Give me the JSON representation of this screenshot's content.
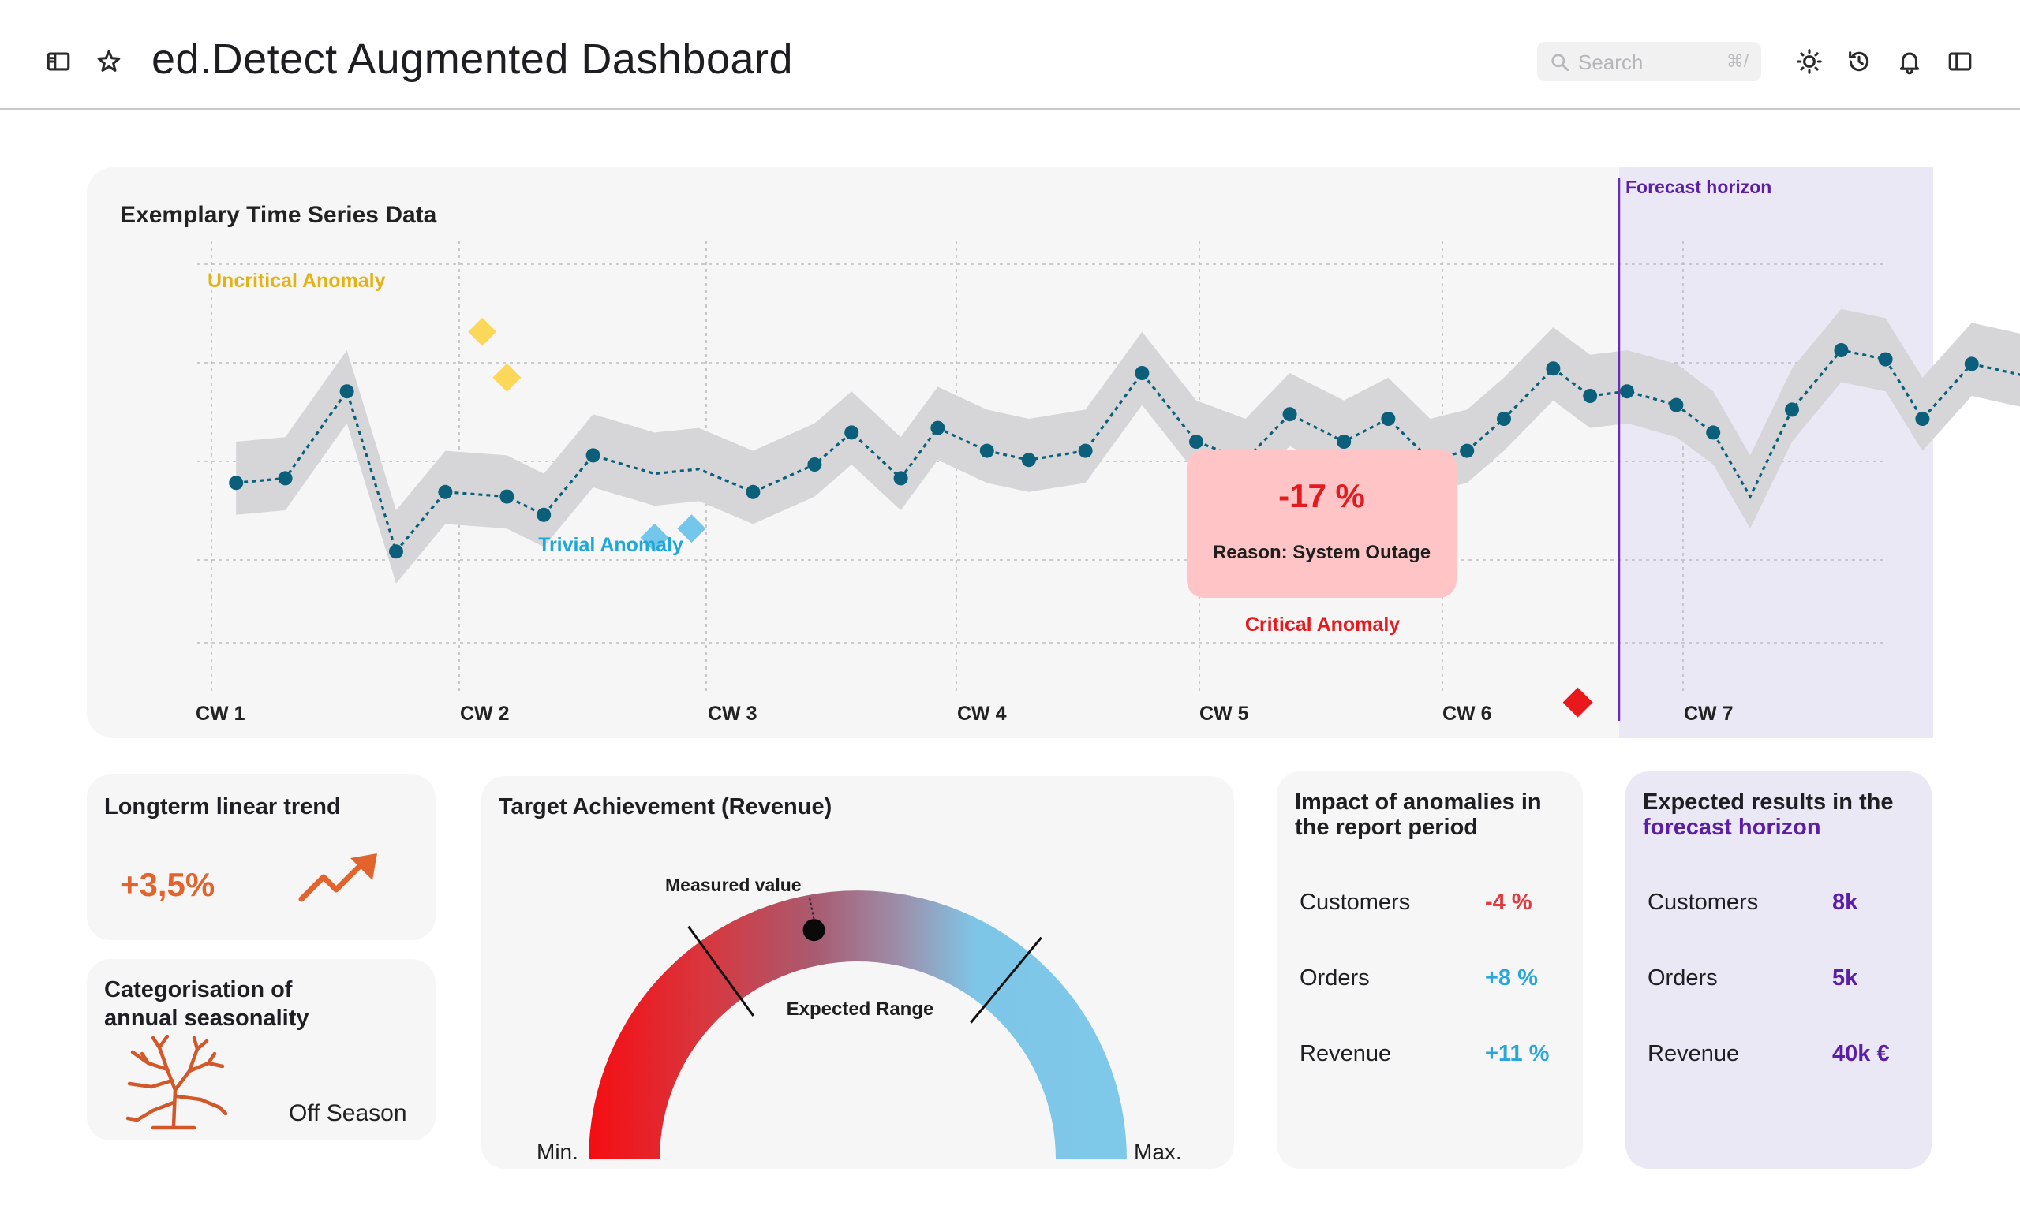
{
  "header": {
    "title": "ed.Detect Augmented Dashboard",
    "search_placeholder": "Search",
    "search_shortcut": "⌘/",
    "icons": [
      "sidebar-toggle-icon",
      "star-icon",
      "sun-icon",
      "history-icon",
      "bell-icon",
      "panel-icon"
    ]
  },
  "chart_data": {
    "type": "line",
    "title": "Exemplary Time Series Data",
    "x_ticks": [
      "CW 1",
      "CW 2",
      "CW 3",
      "CW 4",
      "CW 5",
      "CW 6",
      "CW 7"
    ],
    "ylim": [
      0,
      100
    ],
    "grid": true,
    "series": [
      {
        "values": [
          [
            0.1,
            41
          ],
          [
            0.3,
            42
          ],
          [
            0.55,
            61
          ],
          [
            0.75,
            26
          ],
          [
            0.95,
            39
          ],
          [
            1.2,
            38
          ],
          [
            1.35,
            34
          ],
          [
            1.55,
            47
          ],
          [
            1.8,
            43
          ],
          [
            1.98,
            44
          ],
          [
            2.2,
            39
          ],
          [
            2.45,
            45
          ],
          [
            2.6,
            52
          ],
          [
            2.8,
            42
          ],
          [
            2.95,
            53
          ],
          [
            3.15,
            48
          ],
          [
            3.32,
            46
          ],
          [
            3.55,
            48
          ],
          [
            3.78,
            65
          ],
          [
            4.0,
            50
          ],
          [
            4.2,
            46
          ],
          [
            4.38,
            56
          ],
          [
            4.6,
            50
          ],
          [
            4.78,
            55
          ],
          [
            4.95,
            46
          ],
          [
            5.1,
            48
          ],
          [
            5.25,
            55
          ],
          [
            5.45,
            66
          ],
          [
            5.6,
            60
          ],
          [
            5.75,
            61
          ],
          [
            5.95,
            58
          ],
          [
            6.1,
            52
          ],
          [
            6.25,
            38
          ],
          [
            6.42,
            57
          ],
          [
            6.62,
            70
          ],
          [
            6.8,
            68
          ],
          [
            6.95,
            55
          ],
          [
            7.15,
            67
          ]
        ],
        "points": [
          [
            0.1,
            41
          ],
          [
            0.3,
            42
          ],
          [
            0.55,
            61
          ],
          [
            0.75,
            26
          ],
          [
            0.95,
            39
          ],
          [
            1.2,
            38
          ],
          [
            1.35,
            34
          ],
          [
            1.55,
            47
          ],
          [
            2.2,
            39
          ],
          [
            2.45,
            45
          ],
          [
            2.6,
            52
          ],
          [
            2.8,
            42
          ],
          [
            2.95,
            53
          ],
          [
            3.15,
            48
          ],
          [
            3.32,
            46
          ],
          [
            3.55,
            48
          ],
          [
            3.78,
            65
          ],
          [
            4.0,
            50
          ],
          [
            4.2,
            46
          ],
          [
            4.38,
            56
          ],
          [
            4.6,
            50
          ],
          [
            4.78,
            55
          ],
          [
            4.95,
            46
          ],
          [
            5.1,
            48
          ],
          [
            5.25,
            55
          ],
          [
            5.45,
            66
          ],
          [
            5.6,
            60
          ],
          [
            5.75,
            61
          ],
          [
            5.95,
            58
          ],
          [
            6.1,
            52
          ],
          [
            6.42,
            57
          ],
          [
            6.62,
            70
          ],
          [
            6.8,
            68
          ],
          [
            6.95,
            55
          ],
          [
            7.15,
            67
          ]
        ]
      },
      {
        "values": [
          [
            7.15,
            67
          ],
          [
            7.4,
            64
          ],
          [
            7.6,
            66
          ],
          [
            7.8,
            70
          ],
          [
            8.0,
            70
          ],
          [
            8.2,
            61
          ],
          [
            8.45,
            66
          ],
          [
            8.75,
            73
          ]
        ]
      }
    ],
    "anomalies": [
      {
        "label": "Uncritical Anomaly",
        "color": "#f5c731",
        "points": [
          [
            1.1,
            74
          ],
          [
            1.2,
            64
          ]
        ]
      },
      {
        "label": "Trivial Anomaly",
        "color": "#1ea7d9",
        "points": [
          [
            1.8,
            29
          ],
          [
            1.95,
            31
          ]
        ]
      },
      {
        "label": "Critical Anomaly",
        "color": "#e8181d",
        "points": [
          [
            5.55,
            -7
          ]
        ]
      }
    ],
    "callout": {
      "value": "-17 %",
      "reason": "Reason: System Outage"
    },
    "forecast_label": "Forecast horizon",
    "colors": {
      "line": "#0b5f7a",
      "band": "#d6d6d8",
      "forecast_bg": "#ebe8f6",
      "forecast_line": "#6a2cb5"
    }
  },
  "trend": {
    "title": "Longterm linear trend",
    "value": "+3,5%",
    "icon": "trend-up-arrow-icon"
  },
  "season": {
    "title_line1": "Categorisation of",
    "title_line2": "annual seasonality",
    "value": "Off Season",
    "icon": "bare-tree-icon"
  },
  "gauge": {
    "title": "Target Achievement (Revenue)",
    "measured_label": "Measured value",
    "expected_label": "Expected Range",
    "min_label": "Min.",
    "max_label": "Max.",
    "measured_fraction": 0.44,
    "expected_range": [
      0.3,
      0.72
    ]
  },
  "impact": {
    "title_line1": "Impact of anomalies in",
    "title_line2": "the report period",
    "rows": [
      {
        "label": "Customers",
        "value": "-4 %",
        "color": "#e13a3e"
      },
      {
        "label": "Orders",
        "value": "+8 %",
        "color": "#2aa7d8"
      },
      {
        "label": "Revenue",
        "value": "+11 %",
        "color": "#2aa7d8"
      }
    ]
  },
  "forecast": {
    "title_line1": "Expected results in the",
    "title_line2": "forecast horizon",
    "rows": [
      {
        "label": "Customers",
        "value": "8k"
      },
      {
        "label": "Orders",
        "value": "5k"
      },
      {
        "label": "Revenue",
        "value": "40k €"
      }
    ]
  }
}
